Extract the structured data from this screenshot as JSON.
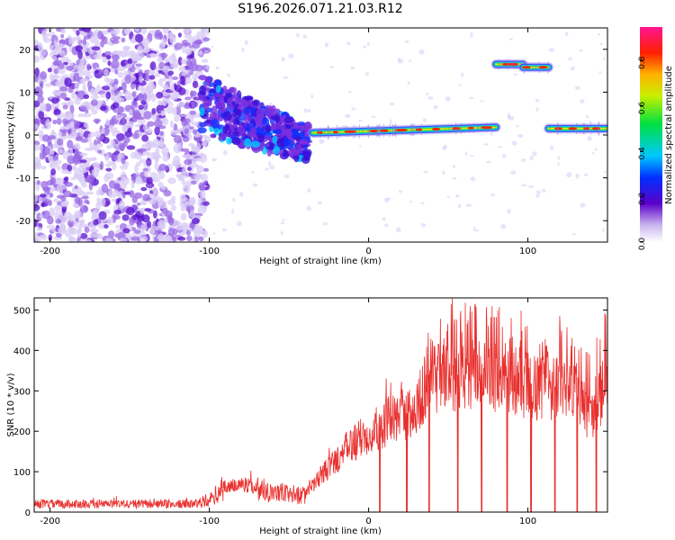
{
  "title": "S196.2026.071.21.03.R12",
  "chart_data": [
    {
      "type": "heatmap",
      "xlabel": "Height of straight line (km)",
      "ylabel": "Frequency (Hz)",
      "xlim": [
        -210,
        150
      ],
      "ylim": [
        -25,
        25
      ],
      "xticks": [
        -200,
        -100,
        0,
        100
      ],
      "yticks": [
        -20,
        -10,
        0,
        10,
        20
      ],
      "colorbar": {
        "label": "Normalized spectral amplitude",
        "range": [
          0.0,
          0.95
        ],
        "ticks": [
          0.0,
          0.2,
          0.4,
          0.6,
          0.8
        ],
        "tick_labels": [
          "0.0",
          "0.2",
          "0.4",
          "0.6",
          "0.8"
        ]
      },
      "segments": [
        {
          "name": "scattered noise",
          "x": [
            -210,
            -105
          ],
          "freq": [
            -25,
            25
          ],
          "amplitude": 0.1
        },
        {
          "name": "diffuse blobs",
          "x": [
            -105,
            -38
          ],
          "freq_start": 7,
          "freq_end": -2,
          "amplitude": 0.25
        },
        {
          "name": "main line",
          "x": [
            -35,
            80
          ],
          "freq_start": 0.5,
          "freq_end": 1.8,
          "amplitude": 0.9
        },
        {
          "name": "upper line A",
          "x": [
            80,
            97
          ],
          "freq": 16.5,
          "amplitude": 0.9
        },
        {
          "name": "upper line B",
          "x": [
            97,
            113
          ],
          "freq": 15.8,
          "amplitude": 0.9
        },
        {
          "name": "right line",
          "x": [
            113,
            150
          ],
          "freq": 1.5,
          "amplitude": 0.9
        }
      ]
    },
    {
      "type": "line",
      "xlabel": "Height of straight line (km)",
      "ylabel": "SNR (10 * v/v)",
      "xlim": [
        -210,
        150
      ],
      "ylim": [
        0,
        530
      ],
      "xticks": [
        -200,
        -100,
        0,
        100
      ],
      "yticks": [
        0,
        100,
        200,
        300,
        400,
        500
      ],
      "series": [
        {
          "name": "SNR",
          "color": "#e8302e",
          "baseline_x": [
            -210,
            -110,
            -100,
            -90,
            -80,
            -70,
            -60,
            -50,
            -40,
            -30,
            -20,
            -10,
            0,
            10,
            20,
            30,
            38,
            50,
            60,
            70,
            80,
            90,
            100,
            110,
            120,
            130,
            140,
            150
          ],
          "baseline_y": [
            20,
            20,
            30,
            60,
            70,
            60,
            50,
            45,
            40,
            90,
            130,
            170,
            195,
            220,
            240,
            250,
            340,
            340,
            340,
            340,
            340,
            330,
            320,
            310,
            310,
            290,
            240,
            330
          ],
          "dips_x": [
            7,
            24,
            38,
            56,
            71,
            87,
            102,
            117,
            131,
            143
          ]
        }
      ]
    }
  ],
  "colors": {
    "line": "#e8302e",
    "colormap": [
      "#ffffff",
      "#5a00c8",
      "#0000ff",
      "#00d0ff",
      "#00e060",
      "#e0e000",
      "#ff8000",
      "#ff0000",
      "#ff1493"
    ]
  }
}
